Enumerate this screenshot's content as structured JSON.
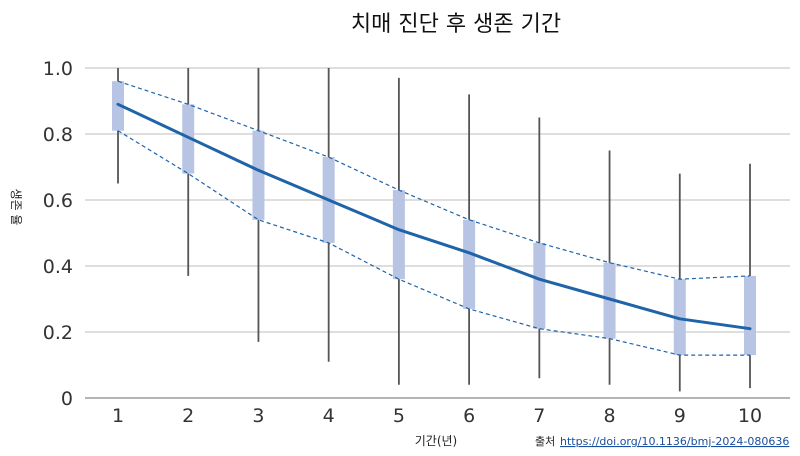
{
  "chart_data": {
    "type": "line",
    "title": "치매 진단 후 생존 기간",
    "xlabel": "기간(년)",
    "ylabel": "생존 율",
    "x": [
      1,
      2,
      3,
      4,
      5,
      6,
      7,
      8,
      9,
      10
    ],
    "xlim": [
      0.5,
      10.5
    ],
    "ylim": [
      0,
      1.0
    ],
    "yticks": [
      "0",
      "0.2",
      "0.4",
      "0.6",
      "0.8",
      "1.0"
    ],
    "xticks": [
      "1",
      "2",
      "3",
      "4",
      "5",
      "6",
      "7",
      "8",
      "9",
      "10"
    ],
    "grid": "horizontal",
    "series": [
      {
        "values": [
          0.89,
          0.79,
          0.69,
          0.6,
          0.51,
          0.44,
          0.36,
          0.3,
          0.24,
          0.21
        ]
      }
    ],
    "ci_lower": [
      0.81,
      0.68,
      0.54,
      0.47,
      0.36,
      0.27,
      0.21,
      0.18,
      0.13,
      0.13
    ],
    "ci_upper": [
      0.96,
      0.89,
      0.81,
      0.73,
      0.63,
      0.54,
      0.47,
      0.41,
      0.36,
      0.37
    ],
    "range_lower": [
      0.65,
      0.37,
      0.17,
      0.11,
      0.04,
      0.04,
      0.06,
      0.04,
      0.02,
      0.03
    ],
    "range_upper": [
      1.0,
      1.0,
      1.0,
      1.0,
      0.97,
      0.92,
      0.85,
      0.75,
      0.68,
      0.71
    ],
    "colors": {
      "line": "#1f63a8",
      "ci_bar": "#b7c4e3",
      "range": "#555555",
      "grid": "#bdbdbd"
    }
  },
  "source": {
    "label": "출처",
    "link": "https://doi.org/10.1136/bmj-2024-080636"
  }
}
